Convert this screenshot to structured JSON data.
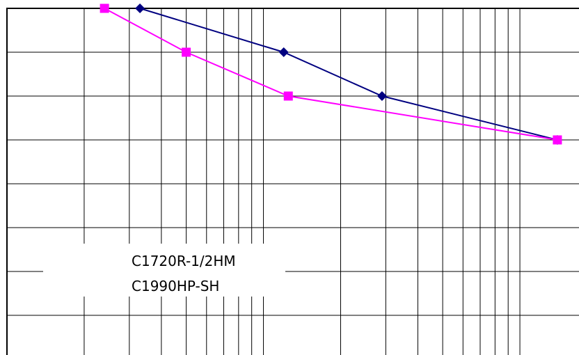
{
  "chart_data": {
    "type": "line",
    "x_scale": "log",
    "grid": true,
    "legend": "center-left",
    "series": [
      {
        "name": "C1720R-1/2HM",
        "color": "#000080",
        "marker": "diamond",
        "points": [
          [
            3.3,
            13.0
          ],
          [
            12.0,
            12.0
          ],
          [
            29.0,
            11.0
          ],
          [
            140.0,
            10.0
          ]
        ]
      },
      {
        "name": "C1990HP-SH",
        "color": "#ff00ff",
        "marker": "square",
        "points": [
          [
            2.4,
            13.0
          ],
          [
            5.0,
            12.0
          ],
          [
            12.5,
            11.0
          ],
          [
            140.0,
            10.0
          ]
        ]
      }
    ]
  }
}
